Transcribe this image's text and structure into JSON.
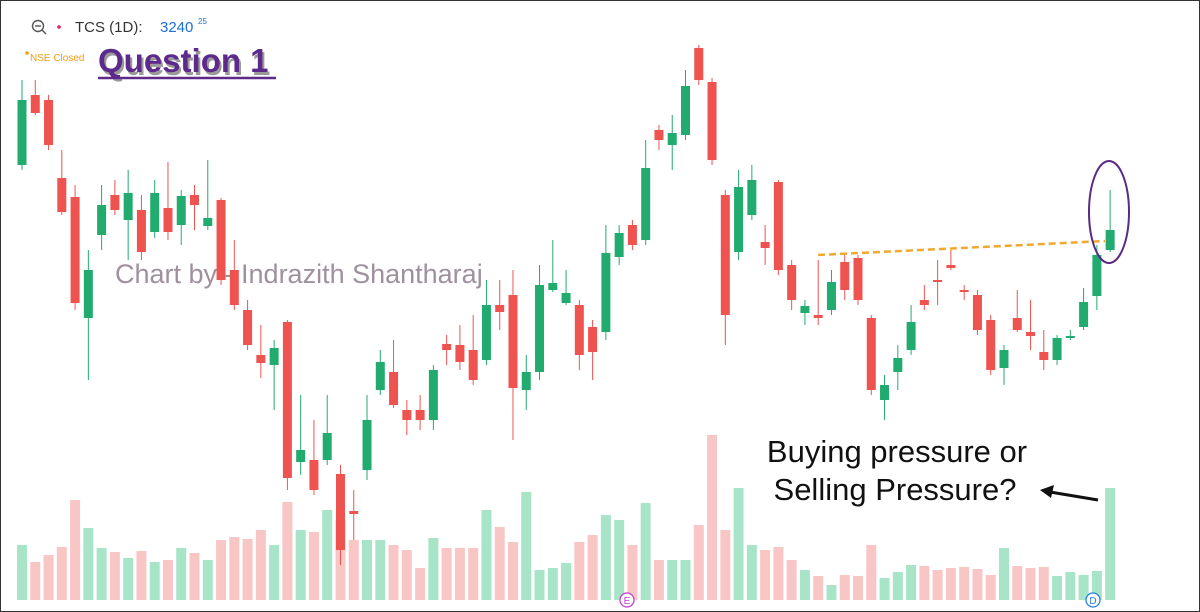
{
  "chart_data": {
    "type": "candlestick",
    "symbol": "TCS (1D):",
    "price": "3240",
    "price_fraction": "25",
    "status": "NSE Closed",
    "title": "Question 1",
    "watermark": "Chart by - Indrazith Shantharaj",
    "annotation": [
      "Buying pressure or",
      "Selling Pressure?"
    ],
    "event_markers": [
      "E",
      "D"
    ],
    "up_color": "#22ab6f",
    "down_color": "#ef5350",
    "volume_up_color": "#a8e4c8",
    "volume_down_color": "#f9c6c6",
    "ylim": [
      0,
      612
    ],
    "volume_ylim": [
      0,
      600
    ],
    "ohlc": [
      [
        447,
        532,
        442,
        512
      ],
      [
        517,
        532,
        497,
        499
      ],
      [
        512,
        517,
        462,
        467
      ],
      [
        434,
        462,
        397,
        400
      ],
      [
        415,
        427,
        302,
        309
      ],
      [
        294,
        362,
        232,
        342
      ],
      [
        377,
        427,
        362,
        407
      ],
      [
        417,
        432,
        397,
        402
      ],
      [
        392,
        442,
        352,
        419
      ],
      [
        402,
        417,
        352,
        360
      ],
      [
        380,
        432,
        374,
        419
      ],
      [
        404,
        450,
        372,
        380
      ],
      [
        387,
        422,
        367,
        416
      ],
      [
        417,
        427,
        382,
        407
      ],
      [
        386,
        452,
        382,
        394
      ],
      [
        412,
        414,
        327,
        332
      ],
      [
        342,
        372,
        302,
        307
      ],
      [
        302,
        312,
        262,
        267
      ],
      [
        257,
        287,
        234,
        249
      ],
      [
        247,
        272,
        202,
        264
      ],
      [
        290,
        292,
        122,
        134
      ],
      [
        150,
        217,
        137,
        162
      ],
      [
        152,
        192,
        117,
        122
      ],
      [
        152,
        217,
        147,
        179
      ],
      [
        138,
        147,
        47,
        62
      ],
      [
        101,
        122,
        72,
        98
      ],
      [
        142,
        217,
        132,
        192
      ],
      [
        222,
        262,
        217,
        250
      ],
      [
        240,
        272,
        204,
        207
      ],
      [
        202,
        212,
        177,
        192
      ],
      [
        202,
        217,
        182,
        192
      ],
      [
        192,
        247,
        182,
        242
      ],
      [
        268,
        277,
        247,
        262
      ],
      [
        267,
        287,
        242,
        250
      ],
      [
        262,
        297,
        227,
        232
      ],
      [
        252,
        332,
        247,
        307
      ],
      [
        307,
        332,
        282,
        300
      ],
      [
        317,
        342,
        172,
        224
      ],
      [
        222,
        257,
        202,
        240
      ],
      [
        240,
        347,
        232,
        327
      ],
      [
        322,
        372,
        320,
        329
      ],
      [
        309,
        342,
        307,
        319
      ],
      [
        307,
        312,
        242,
        257
      ],
      [
        285,
        292,
        232,
        260
      ],
      [
        280,
        387,
        272,
        359
      ],
      [
        355,
        387,
        347,
        379
      ],
      [
        387,
        392,
        362,
        367
      ],
      [
        372,
        472,
        367,
        444
      ],
      [
        482,
        487,
        462,
        472
      ],
      [
        467,
        497,
        442,
        479
      ],
      [
        477,
        542,
        472,
        526
      ],
      [
        564,
        567,
        527,
        532
      ],
      [
        530,
        534,
        447,
        452
      ],
      [
        417,
        422,
        267,
        297
      ],
      [
        360,
        442,
        352,
        425
      ],
      [
        397,
        447,
        392,
        432
      ],
      [
        370,
        387,
        347,
        364
      ],
      [
        430,
        432,
        337,
        342
      ],
      [
        347,
        352,
        302,
        312
      ],
      [
        299,
        312,
        287,
        306
      ],
      [
        297,
        352,
        287,
        294
      ],
      [
        302,
        342,
        297,
        330
      ],
      [
        350,
        357,
        312,
        322
      ],
      [
        354,
        357,
        307,
        312
      ],
      [
        294,
        297,
        217,
        222
      ],
      [
        212,
        237,
        192,
        227
      ],
      [
        240,
        267,
        222,
        254
      ],
      [
        262,
        307,
        257,
        290
      ],
      [
        312,
        327,
        302,
        307
      ],
      [
        332,
        352,
        307,
        330
      ],
      [
        347,
        362,
        342,
        344
      ],
      [
        322,
        327,
        312,
        320
      ],
      [
        317,
        322,
        277,
        282
      ],
      [
        292,
        297,
        237,
        242
      ],
      [
        244,
        267,
        227,
        262
      ],
      [
        294,
        322,
        280,
        282
      ],
      [
        280,
        312,
        262,
        276
      ],
      [
        260,
        282,
        242,
        252
      ],
      [
        252,
        277,
        247,
        274
      ],
      [
        274,
        282,
        272,
        276
      ],
      [
        285,
        324,
        282,
        310
      ],
      [
        316,
        367,
        302,
        357
      ],
      [
        362,
        422,
        360,
        382
      ]
    ],
    "volumes": [
      55,
      38,
      45,
      53,
      100,
      72,
      52,
      48,
      42,
      49,
      38,
      40,
      52,
      47,
      40,
      60,
      63,
      61,
      70,
      55,
      98,
      70,
      68,
      90,
      80,
      60,
      60,
      60,
      55,
      50,
      32,
      62,
      52,
      52,
      52,
      90,
      73,
      58,
      108,
      30,
      32,
      37,
      58,
      65,
      85,
      80,
      55,
      97,
      40,
      40,
      40,
      75,
      165,
      70,
      112,
      55,
      50,
      53,
      40,
      30,
      24,
      15,
      25,
      24,
      55,
      22,
      28,
      35,
      34,
      30,
      32,
      33,
      31,
      25,
      52,
      34,
      32,
      33,
      24,
      28,
      25,
      29,
      112
    ]
  }
}
